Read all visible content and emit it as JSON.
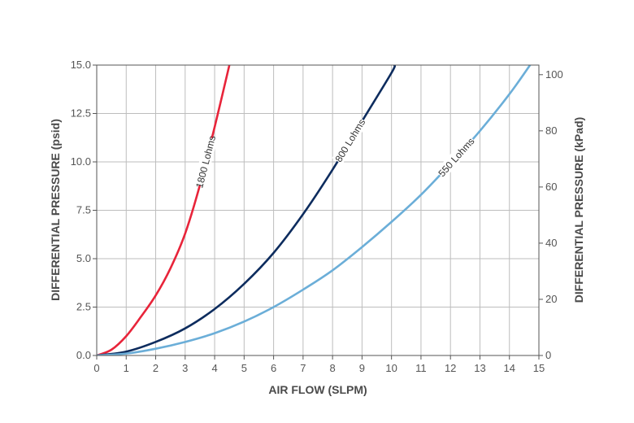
{
  "chart_data": {
    "type": "line",
    "xlabel": "AIR FLOW (SLPM)",
    "ylabel": "DIFFERENTIAL PRESSURE (psid)",
    "ylabel_right": "DIFFERENTIAL PRESSURE (kPad)",
    "xlim": [
      0,
      15
    ],
    "ylim": [
      0,
      15
    ],
    "ylim_right": [
      0,
      103.42
    ],
    "grid": true,
    "x_ticks": [
      "0",
      "1",
      "2",
      "3",
      "4",
      "5",
      "6",
      "7",
      "8",
      "9",
      "10",
      "11",
      "12",
      "13",
      "14",
      "15"
    ],
    "y_ticks": [
      "0.0",
      "2.5",
      "5.0",
      "7.5",
      "10.0",
      "12.5",
      "15.0"
    ],
    "y_ticks_right": [
      "0",
      "20",
      "40",
      "60",
      "80",
      "100"
    ],
    "series": [
      {
        "name": "1800 Lohms",
        "color": "#e8243a",
        "x": [
          0,
          0.5,
          1,
          1.5,
          2,
          2.5,
          3,
          3.5,
          4,
          4.5
        ],
        "y": [
          0,
          0.3,
          1.0,
          2.0,
          3.1,
          4.5,
          6.3,
          8.8,
          11.8,
          15.0
        ]
      },
      {
        "name": "800 Lohms",
        "color": "#0d2c5e",
        "x": [
          0,
          1,
          2,
          3,
          4,
          5,
          6,
          7,
          8,
          9,
          10,
          10.1
        ],
        "y": [
          0,
          0.2,
          0.7,
          1.4,
          2.4,
          3.7,
          5.3,
          7.3,
          9.6,
          12.1,
          14.6,
          15.0
        ]
      },
      {
        "name": "550 Lohms",
        "color": "#6baed8",
        "x": [
          0,
          1,
          2,
          3,
          4,
          5,
          6,
          7,
          8,
          9,
          10,
          11,
          12,
          13,
          14,
          14.7
        ],
        "y": [
          0,
          0.1,
          0.35,
          0.7,
          1.15,
          1.75,
          2.5,
          3.4,
          4.4,
          5.6,
          6.9,
          8.3,
          9.9,
          11.6,
          13.5,
          15.0
        ]
      }
    ]
  }
}
